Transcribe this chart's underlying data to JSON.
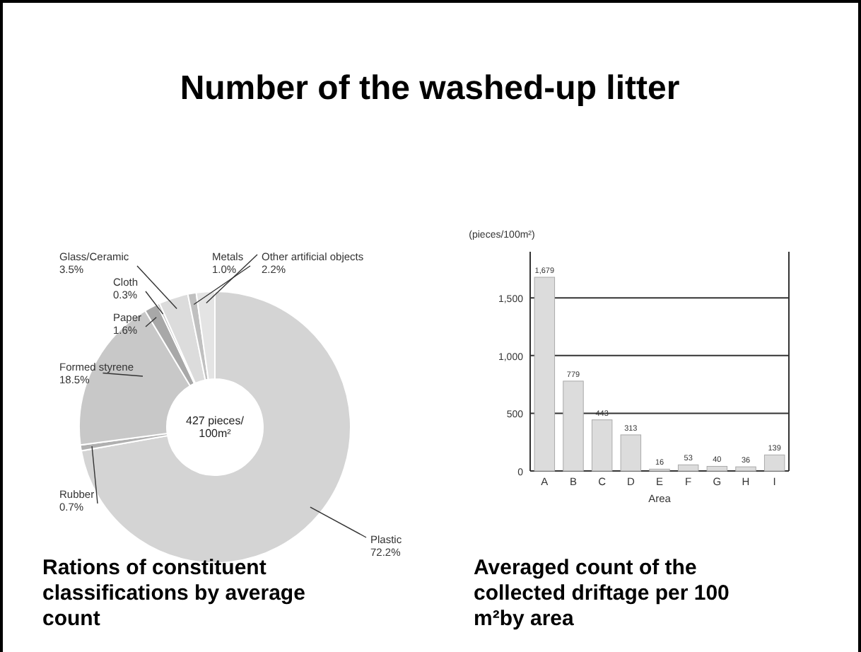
{
  "chart_data": [
    {
      "type": "other",
      "title": "Number of the washed-up litter"
    },
    {
      "type": "donut",
      "title": "Rations of constituent classifications by average count",
      "categories": [
        "Plastic",
        "Rubber",
        "Formed styrene",
        "Paper",
        "Cloth",
        "Glass/Ceramic",
        "Metals",
        "Other artificial objects"
      ],
      "values": [
        72.2,
        0.7,
        18.5,
        1.6,
        0.3,
        3.5,
        1.0,
        2.2
      ],
      "value_labels": [
        "72.2%",
        "0.7%",
        "18.5%",
        "1.6%",
        "0.3%",
        "3.5%",
        "1.0%",
        "2.2%"
      ],
      "colors": [
        "#d4d4d4",
        "#b0b0b0",
        "#c8c8c8",
        "#a8a8a8",
        "#bcbcbc",
        "#dcdcdc",
        "#c0c0c0",
        "#e4e4e4"
      ],
      "annotations": [
        "427 pieces/ 100m²"
      ]
    },
    {
      "type": "bar",
      "title": "Averaged count of the collected driftage per 100 m²by area",
      "ylabel": "(pieces/100m²)",
      "xlabel": "Area",
      "categories": [
        "A",
        "B",
        "C",
        "D",
        "E",
        "F",
        "G",
        "H",
        "I"
      ],
      "values": [
        1679,
        779,
        443,
        313,
        16,
        53,
        40,
        36,
        139
      ],
      "value_labels": [
        "1,679",
        "779",
        "443",
        "313",
        "16",
        "53",
        "40",
        "36",
        "139"
      ],
      "color": "#dcdcdc",
      "ylim": [
        0,
        1900
      ],
      "yticks": [
        0,
        {
          "value": 500,
          "label": "500"
        },
        {
          "value": 1000,
          "label": "1,000"
        },
        {
          "value": 1500,
          "label": "1,500"
        }
      ],
      "grid": "y"
    }
  ]
}
